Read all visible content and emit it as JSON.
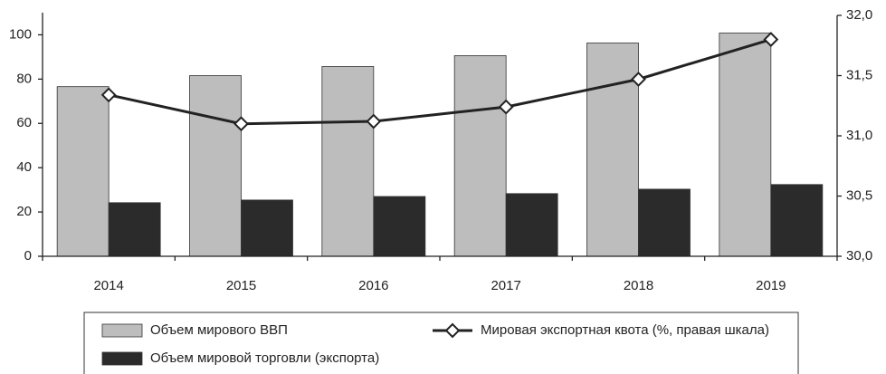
{
  "chart_data": {
    "type": "bar",
    "categories": [
      "2014",
      "2015",
      "2016",
      "2017",
      "2018",
      "2019"
    ],
    "series": [
      {
        "name": "Объем мирового ВВП",
        "type": "bar",
        "color": "#bdbdbd",
        "values": [
          76.6,
          81.6,
          85.7,
          90.6,
          96.3,
          100.8
        ]
      },
      {
        "name": "Объем мировой торговли (экспорта)",
        "type": "bar",
        "color": "#2b2b2b",
        "values": [
          24.2,
          25.4,
          27.0,
          28.3,
          30.3,
          32.4
        ]
      },
      {
        "name": "Мировая экспортная квота (%, правая шкала)",
        "type": "line",
        "axis": "y2",
        "color": "#222222",
        "values": [
          31.34,
          31.1,
          31.12,
          31.24,
          31.47,
          31.8
        ]
      }
    ],
    "ylim": [
      0,
      110
    ],
    "yticks": [
      0,
      20,
      40,
      60,
      80,
      100
    ],
    "y2lim": [
      30,
      32
    ],
    "y2ticks": [
      {
        "value": 30,
        "label": "30,0"
      },
      {
        "value": 30.5,
        "label": "30,5"
      },
      {
        "value": 31,
        "label": "31,0"
      },
      {
        "value": 31.5,
        "label": "31,5"
      },
      {
        "value": 32,
        "label": "32,0"
      }
    ],
    "legend": "bottom"
  }
}
